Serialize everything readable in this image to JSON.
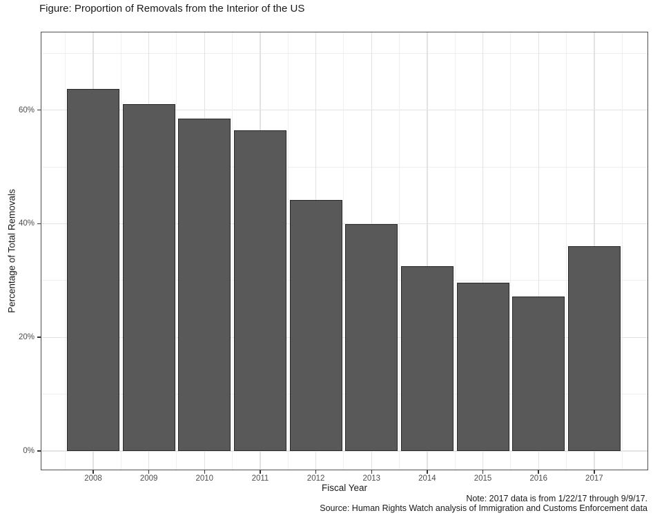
{
  "chart_data": {
    "type": "bar",
    "title": "Figure: Proportion of Removals from the Interior of the US",
    "xlabel": "Fiscal Year",
    "ylabel": "Percentage of Total Removals",
    "categories": [
      "2008",
      "2009",
      "2010",
      "2011",
      "2012",
      "2013",
      "2014",
      "2015",
      "2016",
      "2017"
    ],
    "values": [
      63.7,
      61.0,
      58.5,
      56.5,
      44.2,
      39.9,
      32.5,
      29.6,
      27.2,
      36.1
    ],
    "y_ticks": [
      0,
      20,
      40,
      60
    ],
    "y_tick_labels": [
      "0%",
      "20%",
      "40%",
      "60%"
    ],
    "y_minor_ticks": [
      10,
      30,
      50,
      70
    ],
    "ylim": [
      -3.4,
      73.8
    ],
    "grid": true,
    "legend": "none",
    "bar_fill": "#595959",
    "bar_border": "#262626",
    "note": "Note: 2017 data is from 1/22/17 through 9/9/17.",
    "source": "Source: Human Rights Watch analysis of Immigration and Customs Enforcement data"
  }
}
